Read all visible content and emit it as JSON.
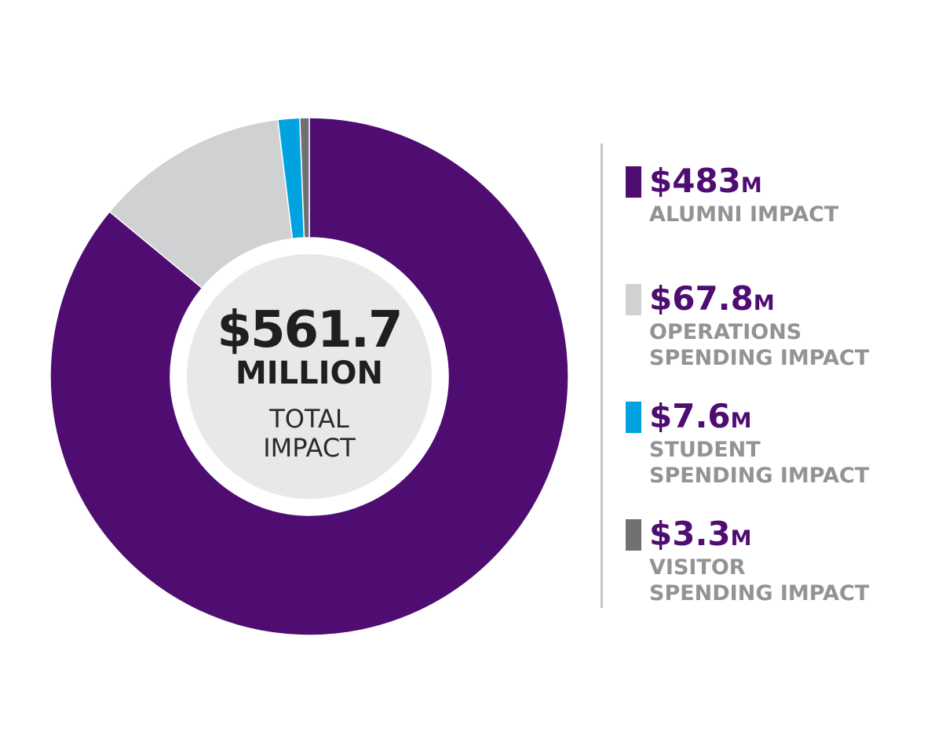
{
  "colors": {
    "purple": "#4f0d72",
    "light_gray": "#d0d1d3",
    "blue": "#00a3e0",
    "dark_gray": "#717174",
    "center_fill": "#e8e8e8"
  },
  "center": {
    "amount": "$561.7",
    "unit": "MILLION",
    "label_line1": "TOTAL",
    "label_line2": "IMPACT"
  },
  "legend": [
    {
      "value": "$483",
      "unit": "M",
      "label": "ALUMNI IMPACT",
      "color": "#4f0d72"
    },
    {
      "value": "$67.8",
      "unit": "M",
      "label": "OPERATIONS\nSPENDING IMPACT",
      "color": "#d0d1d3"
    },
    {
      "value": "$7.6",
      "unit": "M",
      "label": "STUDENT\nSPENDING IMPACT",
      "color": "#00a3e0"
    },
    {
      "value": "$3.3",
      "unit": "M",
      "label": "VISITOR\nSPENDING IMPACT",
      "color": "#717174"
    }
  ],
  "chart_data": {
    "type": "pie",
    "total": 561.7,
    "unit": "$M",
    "slices": [
      {
        "label": "ALUMNI IMPACT",
        "value": 483,
        "color": "#4f0d72"
      },
      {
        "label": "OPERATIONS SPENDING IMPACT",
        "value": 67.8,
        "color": "#d0d1d3"
      },
      {
        "label": "STUDENT SPENDING IMPACT",
        "value": 7.6,
        "color": "#00a3e0"
      },
      {
        "label": "VISITOR SPENDING IMPACT",
        "value": 3.3,
        "color": "#717174"
      }
    ],
    "legend_position": "right"
  }
}
